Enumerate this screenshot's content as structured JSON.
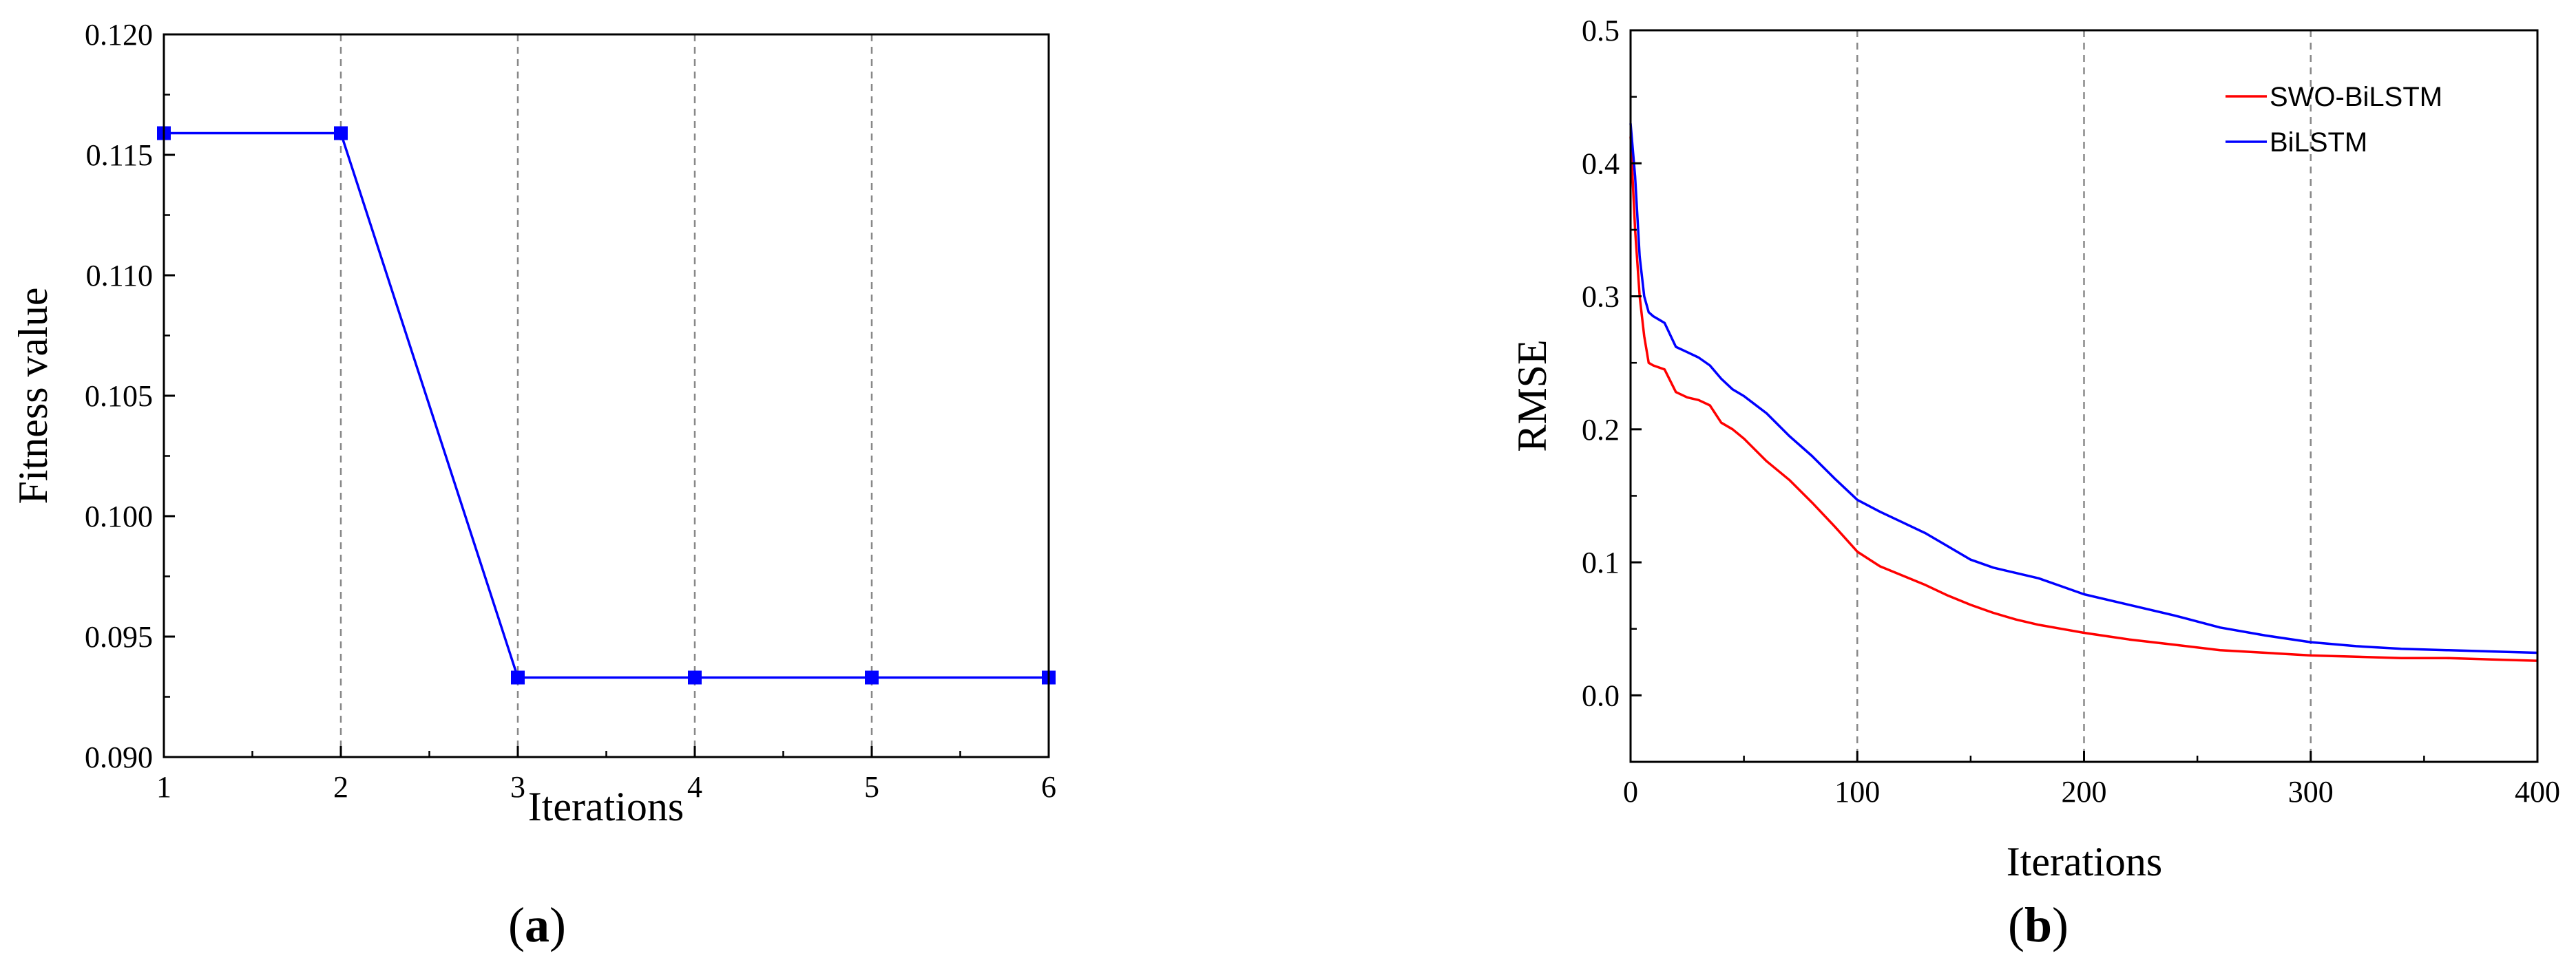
{
  "chart_data": [
    {
      "type": "line",
      "xlabel": "Iterations",
      "ylabel": "Fitness value",
      "panel_label": "(a)",
      "panel_letter": "a",
      "xlim": [
        1,
        6
      ],
      "ylim": [
        0.09,
        0.12
      ],
      "x_ticks": [
        "1",
        "2",
        "3",
        "4",
        "5",
        "6"
      ],
      "y_ticks": [
        "0.090",
        "0.095",
        "0.100",
        "0.105",
        "0.110",
        "0.115",
        "0.120"
      ],
      "vertical_gridlines_at": [
        2,
        3,
        4,
        5
      ],
      "grid": "vertical dashed",
      "series": [
        {
          "color": "#0000ff",
          "marker": "square",
          "x": [
            1,
            2,
            3,
            4,
            5,
            6
          ],
          "y": [
            0.1159,
            0.1159,
            0.0933,
            0.0933,
            0.0933,
            0.0933
          ]
        }
      ]
    },
    {
      "type": "line",
      "xlabel": "Iterations",
      "ylabel": "RMSE",
      "panel_label": "(b)",
      "panel_letter": "b",
      "xlim": [
        0,
        400
      ],
      "ylim": [
        -0.05,
        0.5
      ],
      "x_ticks": [
        "0",
        "100",
        "200",
        "300",
        "400"
      ],
      "y_ticks": [
        "0.0",
        "0.1",
        "0.2",
        "0.3",
        "0.4",
        "0.5"
      ],
      "vertical_gridlines_at": [
        100,
        200,
        300
      ],
      "grid": "vertical dashed",
      "legend_position": "top-right",
      "series": [
        {
          "name": "SWO-BiLSTM",
          "color": "#ff0000",
          "x": [
            0,
            2,
            4,
            6,
            8,
            10,
            15,
            20,
            25,
            30,
            35,
            40,
            45,
            50,
            60,
            70,
            80,
            90,
            100,
            110,
            120,
            130,
            140,
            150,
            160,
            170,
            180,
            190,
            200,
            220,
            240,
            260,
            280,
            300,
            320,
            340,
            360,
            380,
            400
          ],
          "y": [
            0.42,
            0.35,
            0.3,
            0.27,
            0.25,
            0.248,
            0.245,
            0.228,
            0.224,
            0.222,
            0.218,
            0.205,
            0.2,
            0.193,
            0.176,
            0.162,
            0.145,
            0.127,
            0.108,
            0.097,
            0.09,
            0.083,
            0.075,
            0.068,
            0.062,
            0.057,
            0.053,
            0.05,
            0.047,
            0.042,
            0.038,
            0.034,
            0.032,
            0.03,
            0.029,
            0.028,
            0.028,
            0.027,
            0.026
          ]
        },
        {
          "name": "BiLSTM",
          "color": "#0000ff",
          "x": [
            0,
            2,
            4,
            6,
            8,
            10,
            15,
            20,
            25,
            30,
            35,
            40,
            45,
            50,
            60,
            70,
            80,
            90,
            100,
            110,
            120,
            130,
            140,
            150,
            160,
            170,
            180,
            190,
            200,
            220,
            240,
            260,
            280,
            300,
            320,
            340,
            360,
            380,
            400
          ],
          "y": [
            0.43,
            0.39,
            0.33,
            0.3,
            0.288,
            0.285,
            0.28,
            0.262,
            0.258,
            0.254,
            0.248,
            0.238,
            0.23,
            0.225,
            0.212,
            0.195,
            0.18,
            0.163,
            0.147,
            0.138,
            0.13,
            0.122,
            0.112,
            0.102,
            0.096,
            0.092,
            0.088,
            0.082,
            0.076,
            0.068,
            0.06,
            0.051,
            0.045,
            0.04,
            0.037,
            0.035,
            0.034,
            0.033,
            0.032
          ]
        }
      ]
    }
  ]
}
